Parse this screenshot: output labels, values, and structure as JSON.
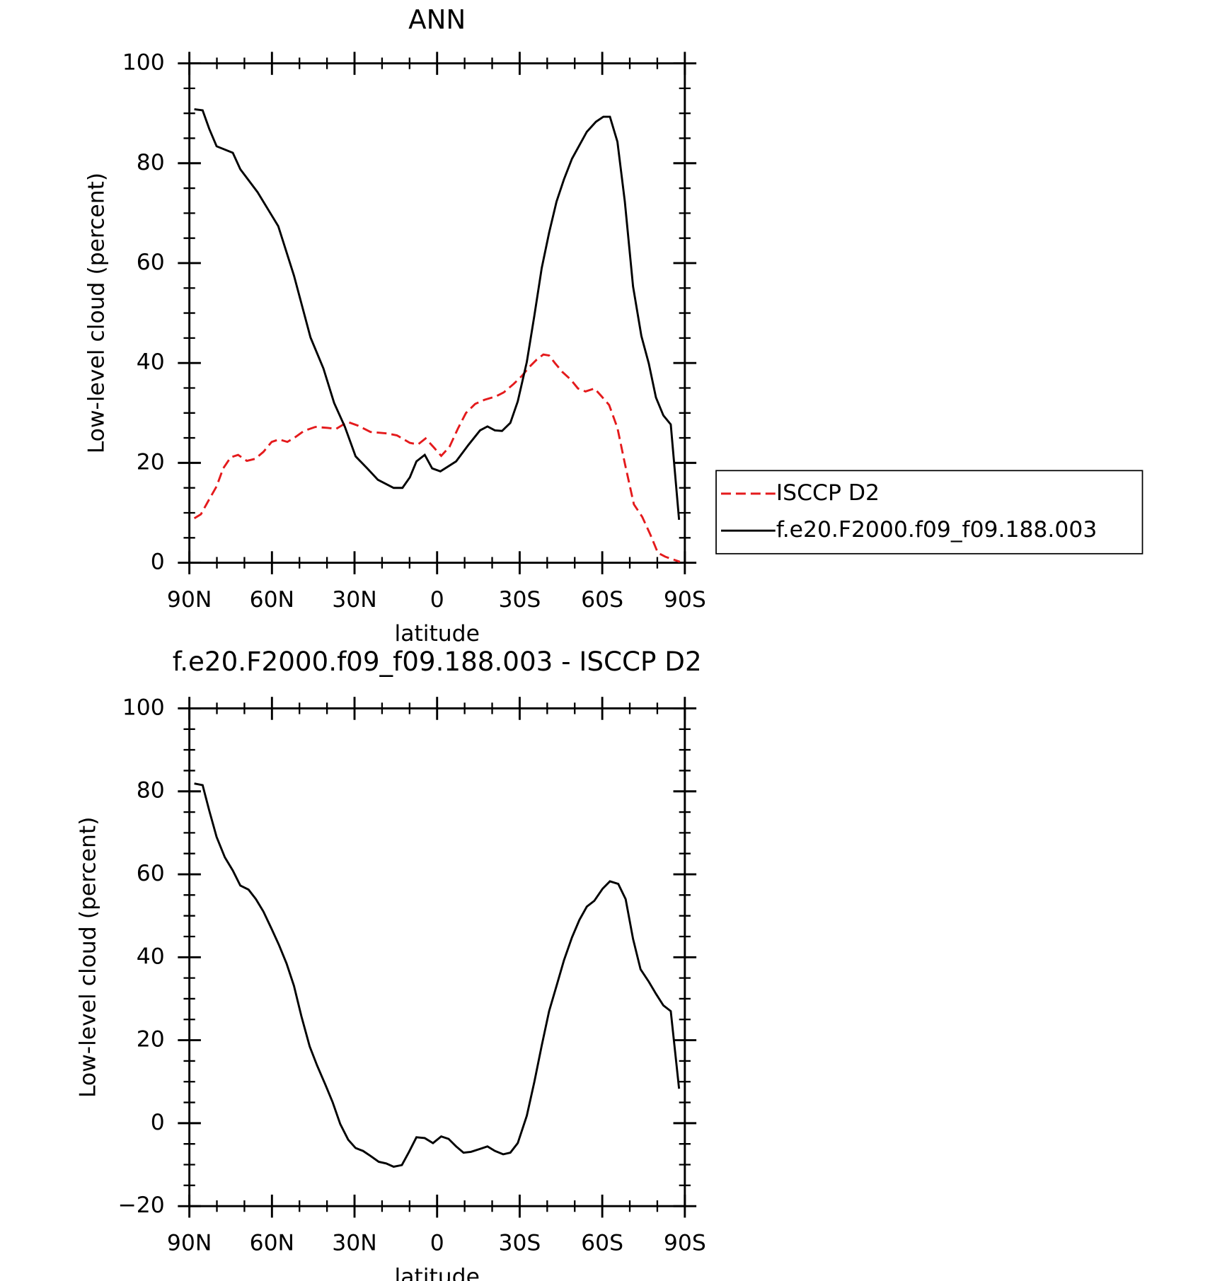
{
  "chart_data": [
    {
      "type": "line",
      "title": "ANN",
      "x_label": "latitude",
      "y_label": "Low-level cloud (percent)",
      "xlim": [
        90,
        -90
      ],
      "ylim": [
        0,
        100
      ],
      "xticks": [
        {
          "value": 90,
          "label": "90N"
        },
        {
          "value": 60,
          "label": "60N"
        },
        {
          "value": 30,
          "label": "30N"
        },
        0,
        {
          "value": -30,
          "label": "30S"
        },
        {
          "value": -60,
          "label": "60S"
        },
        {
          "value": -90,
          "label": "90S"
        }
      ],
      "yticks": [
        0,
        20,
        40,
        60,
        80,
        100
      ],
      "legend": "right",
      "series": [
        {
          "name": "ISCCP D2",
          "color": "#e41a1c",
          "line_style": "dashed",
          "x": [
            88.2,
            85.8,
            83.1,
            80.1,
            77.7,
            75.0,
            72.3,
            69.1,
            66.1,
            63.1,
            60.1,
            57.4,
            54.4,
            51.4,
            48.4,
            44.2,
            39.7,
            36.7,
            32.5,
            28.9,
            24.2,
            18.2,
            14.6,
            9.9,
            6.9,
            4.2,
            1.2,
            -1.5,
            -4.5,
            -7.5,
            -10.5,
            -13.8,
            -17.1,
            -21.3,
            -24.2,
            -27.8,
            -30.8,
            -33.5,
            -36.2,
            -38.6,
            -40.7,
            -42.8,
            -45.5,
            -48.5,
            -51.2,
            -53.9,
            -57.2,
            -59.8,
            -62.5,
            -65.5,
            -68.2,
            -71.5,
            -74.5,
            -77.5,
            -80.2,
            -82.9,
            -85.6,
            -88.2
          ],
          "values": [
            8.9,
            9.7,
            12.4,
            15.3,
            18.9,
            21.1,
            21.6,
            20.4,
            20.8,
            22.2,
            24.2,
            24.7,
            24.2,
            25.2,
            26.4,
            27.2,
            27.0,
            26.8,
            28.2,
            27.5,
            26.2,
            25.9,
            25.5,
            24.0,
            23.7,
            24.9,
            23.1,
            21.4,
            23.2,
            26.8,
            30.0,
            31.8,
            32.6,
            33.3,
            34.1,
            35.8,
            37.4,
            39.2,
            40.7,
            41.7,
            41.5,
            40.0,
            38.2,
            36.7,
            34.9,
            34.3,
            34.9,
            33.3,
            31.6,
            27.0,
            19.9,
            11.7,
            9.2,
            5.6,
            2.0,
            1.2,
            0.7,
            0.2
          ]
        },
        {
          "name": "f.e20.F2000.f09_f09.188.003",
          "color": "#000000",
          "line_style": "solid",
          "x": [
            88.2,
            85.2,
            82.8,
            80.1,
            74.2,
            71.5,
            65.2,
            57.7,
            52.0,
            46.0,
            41.3,
            37.4,
            33.5,
            29.6,
            25.4,
            21.5,
            15.8,
            12.6,
            9.9,
            7.5,
            4.5,
            1.8,
            -1.2,
            -6.9,
            -11.4,
            -15.6,
            -18.3,
            -21.0,
            -23.6,
            -26.6,
            -29.3,
            -32.6,
            -35.3,
            -38.0,
            -40.7,
            -43.4,
            -46.1,
            -49.0,
            -54.4,
            -57.7,
            -60.4,
            -62.8,
            -65.5,
            -68.2,
            -71.2,
            -74.2,
            -76.9,
            -79.5,
            -82.2,
            -84.9,
            -87.9
          ],
          "values": [
            90.8,
            90.6,
            86.9,
            83.4,
            82.1,
            78.8,
            74.2,
            67.4,
            57.5,
            45.1,
            38.9,
            32.0,
            27.2,
            21.3,
            18.9,
            16.6,
            15.0,
            15.0,
            17.1,
            20.3,
            21.6,
            18.9,
            18.3,
            20.3,
            23.6,
            26.5,
            27.3,
            26.5,
            26.4,
            28.0,
            32.3,
            40.2,
            49.4,
            59.0,
            66.1,
            72.3,
            76.8,
            80.9,
            86.3,
            88.3,
            89.3,
            89.3,
            84.3,
            72.3,
            55.3,
            45.4,
            39.9,
            33.1,
            29.5,
            27.7,
            8.6
          ]
        }
      ]
    },
    {
      "type": "line",
      "title": "f.e20.F2000.f09_f09.188.003 - ISCCP D2",
      "x_label": "latitude",
      "y_label": "Low-level cloud (percent)",
      "xlim": [
        90,
        -90
      ],
      "ylim": [
        -20,
        100
      ],
      "xticks": [
        {
          "value": 90,
          "label": "90N"
        },
        {
          "value": 60,
          "label": "60N"
        },
        {
          "value": 30,
          "label": "30N"
        },
        0,
        {
          "value": -30,
          "label": "30S"
        },
        {
          "value": -60,
          "label": "60S"
        },
        {
          "value": -90,
          "label": "90S"
        }
      ],
      "yticks": [
        {
          "value": -20,
          "label": "−20"
        },
        0,
        20,
        40,
        60,
        80,
        100
      ],
      "series": [
        {
          "color": "#000000",
          "line_style": "solid",
          "x": [
            88.2,
            85.2,
            82.8,
            80.1,
            77.1,
            74.2,
            71.5,
            68.5,
            65.8,
            63.1,
            60.1,
            57.4,
            54.7,
            52.0,
            49.3,
            46.3,
            43.6,
            40.6,
            37.9,
            35.2,
            32.3,
            29.6,
            26.9,
            24.2,
            21.2,
            18.5,
            15.8,
            12.8,
            10.2,
            7.5,
            4.5,
            1.5,
            -1.5,
            -4.2,
            -6.9,
            -9.6,
            -12.3,
            -15.6,
            -18.3,
            -21.0,
            -24.0,
            -26.6,
            -29.3,
            -32.6,
            -35.3,
            -38.0,
            -40.7,
            -43.4,
            -46.1,
            -49.0,
            -51.7,
            -54.4,
            -57.1,
            -60.1,
            -62.8,
            -65.8,
            -68.5,
            -71.2,
            -73.9,
            -76.9,
            -79.5,
            -82.2,
            -84.9,
            -87.9
          ],
          "values": [
            81.9,
            81.5,
            75.4,
            69.0,
            64.1,
            60.9,
            57.3,
            56.3,
            54.0,
            51.0,
            46.8,
            42.9,
            38.5,
            33.1,
            25.8,
            18.5,
            13.9,
            9.3,
            5.0,
            -0.2,
            -4.0,
            -6.0,
            -6.7,
            -7.9,
            -9.3,
            -9.7,
            -10.5,
            -10.1,
            -6.9,
            -3.4,
            -3.6,
            -4.8,
            -3.2,
            -3.8,
            -5.6,
            -7.1,
            -6.9,
            -6.2,
            -5.6,
            -6.7,
            -7.5,
            -7.1,
            -4.8,
            1.8,
            9.9,
            18.7,
            27.0,
            33.1,
            39.3,
            44.8,
            49.0,
            52.2,
            53.6,
            56.5,
            58.3,
            57.7,
            54.0,
            44.4,
            37.1,
            34.1,
            31.2,
            28.4,
            27.0,
            8.3
          ]
        }
      ]
    }
  ]
}
